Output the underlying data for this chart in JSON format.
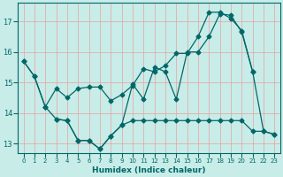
{
  "xlabel": "Humidex (Indice chaleur)",
  "bg_color": "#c8ece8",
  "grid_color": "#e8a0a0",
  "line_color": "#006868",
  "xlim": [
    -0.5,
    23.5
  ],
  "ylim": [
    12.7,
    17.6
  ],
  "yticks": [
    13,
    14,
    15,
    16,
    17
  ],
  "xticks": [
    0,
    1,
    2,
    3,
    4,
    5,
    6,
    7,
    8,
    9,
    10,
    11,
    12,
    13,
    14,
    15,
    16,
    17,
    18,
    19,
    20,
    21,
    22,
    23
  ],
  "line1_x": [
    0,
    1,
    2,
    3,
    4,
    5,
    6,
    7,
    8,
    9,
    10,
    11,
    12,
    13,
    14,
    15,
    16,
    17,
    18,
    19,
    20,
    21
  ],
  "line1_y": [
    15.7,
    15.2,
    14.2,
    14.8,
    14.5,
    14.8,
    14.85,
    14.85,
    14.4,
    14.6,
    14.9,
    15.45,
    15.35,
    15.55,
    15.95,
    15.95,
    16.5,
    17.3,
    17.3,
    17.1,
    16.7,
    15.35
  ],
  "line2_x": [
    0,
    1,
    2,
    3,
    4,
    5,
    6,
    7,
    8,
    9,
    10,
    11,
    12,
    13,
    14,
    15,
    16,
    17,
    18,
    19,
    20,
    21,
    22,
    23
  ],
  "line2_y": [
    15.7,
    15.2,
    14.2,
    13.8,
    13.75,
    13.1,
    13.1,
    12.82,
    13.25,
    13.6,
    14.95,
    14.45,
    15.5,
    15.35,
    14.45,
    16.0,
    16.0,
    16.5,
    17.25,
    17.2,
    16.65,
    15.35,
    13.4,
    13.3
  ],
  "line3_x": [
    3,
    4,
    5,
    6,
    7,
    8,
    9,
    10,
    11,
    12,
    13,
    14,
    15,
    16,
    17,
    18,
    19,
    20,
    21,
    22,
    23
  ],
  "line3_y": [
    13.8,
    13.75,
    13.1,
    13.1,
    12.82,
    13.25,
    13.6,
    13.75,
    13.75,
    13.75,
    13.75,
    13.75,
    13.75,
    13.75,
    13.75,
    13.75,
    13.75,
    13.75,
    13.4,
    13.4,
    13.3
  ]
}
